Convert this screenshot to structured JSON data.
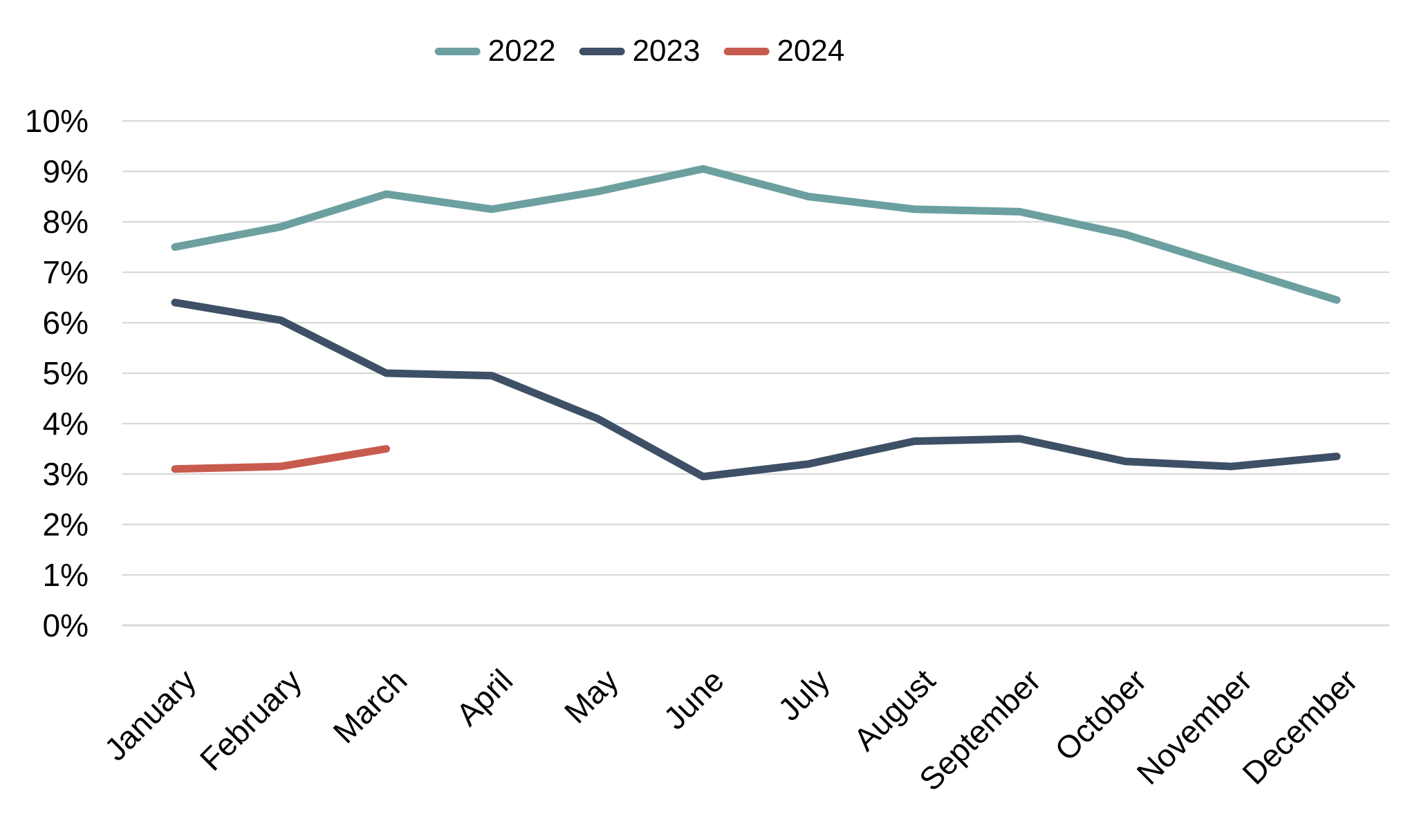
{
  "chart_data": {
    "type": "line",
    "title": "",
    "categories": [
      "January",
      "February",
      "March",
      "April",
      "May",
      "June",
      "July",
      "August",
      "September",
      "October",
      "November",
      "December"
    ],
    "series": [
      {
        "name": "2022",
        "color": "#6CA0A0",
        "values": [
          7.5,
          7.9,
          8.55,
          8.25,
          8.6,
          9.05,
          8.5,
          8.25,
          8.2,
          7.75,
          7.1,
          6.45
        ]
      },
      {
        "name": "2023",
        "color": "#3E5066",
        "values": [
          6.4,
          6.05,
          5.0,
          4.95,
          4.1,
          2.95,
          3.2,
          3.65,
          3.7,
          3.25,
          3.15,
          3.35
        ]
      },
      {
        "name": "2024",
        "color": "#C75B4D",
        "values": [
          3.1,
          3.15,
          3.5
        ]
      }
    ],
    "y_axis": {
      "min": 0,
      "max": 10,
      "step": 1,
      "tick_labels": [
        "0%",
        "1%",
        "2%",
        "3%",
        "4%",
        "5%",
        "6%",
        "7%",
        "8%",
        "9%",
        "10%"
      ],
      "format": "percent"
    },
    "x_axis": {
      "label_rotation_degrees": -45
    },
    "legend_position": "top-center",
    "grid": true,
    "styles": {
      "gridline_color": "#D9D9D9",
      "axis_line_color": "#D9D9D9",
      "text_color": "#000000",
      "background_color": "#FFFFFF"
    }
  }
}
